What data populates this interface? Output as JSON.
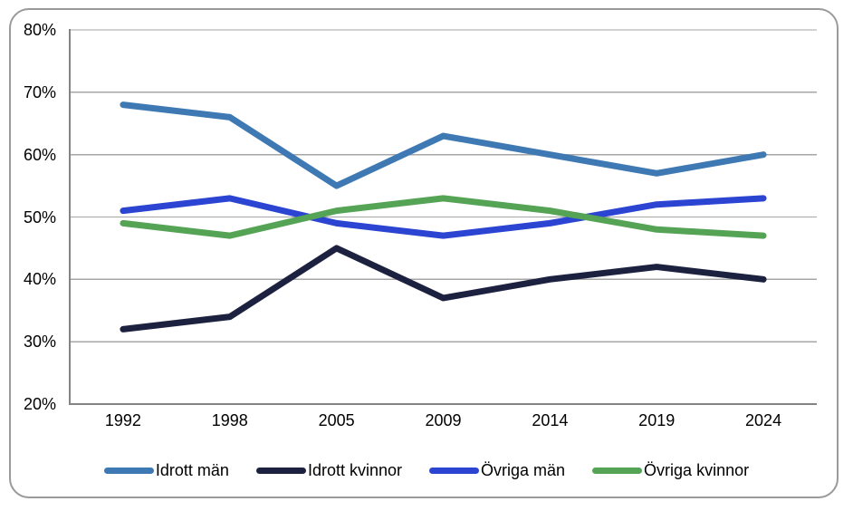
{
  "chart_data": {
    "type": "line",
    "title": "",
    "xlabel": "",
    "ylabel": "",
    "categories": [
      "1992",
      "1998",
      "2005",
      "2009",
      "2014",
      "2019",
      "2024"
    ],
    "series": [
      {
        "name": "Idrott män",
        "color": "#3E79B4",
        "values": [
          68,
          66,
          55,
          63,
          60,
          57,
          60
        ]
      },
      {
        "name": "Idrott kvinnor",
        "color": "#1D2140",
        "values": [
          32,
          34,
          45,
          37,
          40,
          42,
          40
        ]
      },
      {
        "name": "Övriga män",
        "color": "#2B45D2",
        "values": [
          51,
          53,
          49,
          47,
          49,
          52,
          53
        ]
      },
      {
        "name": "Övriga kvinnor",
        "color": "#55A455",
        "values": [
          49,
          47,
          51,
          53,
          51,
          48,
          47
        ]
      }
    ],
    "y_ticks": [
      {
        "label": "80%",
        "value": 80
      },
      {
        "label": "70%",
        "value": 70
      },
      {
        "label": "60%",
        "value": 60
      },
      {
        "label": "50%",
        "value": 50
      },
      {
        "label": "40%",
        "value": 40
      },
      {
        "label": "30%",
        "value": 30
      },
      {
        "label": "20%",
        "value": 20
      }
    ],
    "ylim": [
      20,
      80
    ],
    "grid": true,
    "legend_position": "bottom"
  },
  "colors": {
    "background": "#FFFFFF",
    "frame_border": "#9A9A9A",
    "gridline": "#A6A6A6",
    "axis": "#848484",
    "text": "#000000"
  }
}
